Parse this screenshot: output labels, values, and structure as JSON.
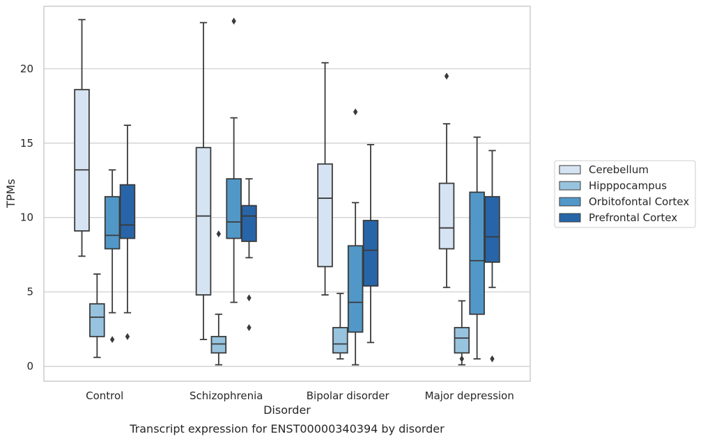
{
  "chart_data": {
    "type": "box",
    "xlabel": "Disorder",
    "ylabel": "TPMs",
    "caption": "Transcript expression for ENST00000340394 by disorder",
    "ylim": [
      -1,
      24.2
    ],
    "yticks": [
      0,
      5,
      10,
      15,
      20
    ],
    "grid": "horizontal",
    "legend_position": "right",
    "categories": [
      "Control",
      "Schizophrenia",
      "Bipolar disorder",
      "Major depression"
    ],
    "series": [
      {
        "name": "Cerebellum",
        "color": "#d5e3f2",
        "boxes": [
          {
            "whisker_low": 7.4,
            "q1": 9.1,
            "median": 13.2,
            "q3": 18.6,
            "whisker_high": 23.3,
            "outliers": []
          },
          {
            "whisker_low": 1.8,
            "q1": 4.8,
            "median": 10.1,
            "q3": 14.7,
            "whisker_high": 23.1,
            "outliers": []
          },
          {
            "whisker_low": 4.8,
            "q1": 6.7,
            "median": 11.3,
            "q3": 13.6,
            "whisker_high": 20.4,
            "outliers": []
          },
          {
            "whisker_low": 5.3,
            "q1": 7.9,
            "median": 9.3,
            "q3": 12.3,
            "whisker_high": 16.3,
            "outliers": [
              19.5
            ]
          }
        ]
      },
      {
        "name": "Hipppocampus",
        "color": "#97c3df",
        "boxes": [
          {
            "whisker_low": 0.6,
            "q1": 2.0,
            "median": 3.3,
            "q3": 4.2,
            "whisker_high": 6.2,
            "outliers": []
          },
          {
            "whisker_low": 0.1,
            "q1": 0.9,
            "median": 1.5,
            "q3": 2.0,
            "whisker_high": 3.5,
            "outliers": [
              8.9
            ]
          },
          {
            "whisker_low": 0.5,
            "q1": 0.9,
            "median": 1.5,
            "q3": 2.6,
            "whisker_high": 4.9,
            "outliers": []
          },
          {
            "whisker_low": 0.1,
            "q1": 0.9,
            "median": 1.9,
            "q3": 2.6,
            "whisker_high": 4.4,
            "outliers": [
              0.5
            ]
          }
        ]
      },
      {
        "name": "Orbitofontal Cortex",
        "color": "#5198c8",
        "boxes": [
          {
            "whisker_low": 3.6,
            "q1": 7.9,
            "median": 8.8,
            "q3": 11.4,
            "whisker_high": 13.2,
            "outliers": [
              1.8
            ]
          },
          {
            "whisker_low": 4.3,
            "q1": 8.6,
            "median": 9.7,
            "q3": 12.6,
            "whisker_high": 16.7,
            "outliers": [
              23.2
            ]
          },
          {
            "whisker_low": 0.1,
            "q1": 2.3,
            "median": 4.3,
            "q3": 8.1,
            "whisker_high": 11.0,
            "outliers": [
              17.1
            ]
          },
          {
            "whisker_low": 0.5,
            "q1": 3.5,
            "median": 7.1,
            "q3": 11.7,
            "whisker_high": 15.4,
            "outliers": []
          }
        ]
      },
      {
        "name": "Prefrontal Cortex",
        "color": "#2865a8",
        "boxes": [
          {
            "whisker_low": 3.6,
            "q1": 8.6,
            "median": 9.5,
            "q3": 12.2,
            "whisker_high": 16.2,
            "outliers": [
              2.0
            ]
          },
          {
            "whisker_low": 7.3,
            "q1": 8.4,
            "median": 10.1,
            "q3": 10.8,
            "whisker_high": 12.6,
            "outliers": [
              4.6,
              2.6
            ]
          },
          {
            "whisker_low": 1.6,
            "q1": 5.4,
            "median": 7.8,
            "q3": 9.8,
            "whisker_high": 14.9,
            "outliers": []
          },
          {
            "whisker_low": 5.3,
            "q1": 7.0,
            "median": 8.7,
            "q3": 11.4,
            "whisker_high": 14.5,
            "outliers": [
              0.5
            ]
          }
        ]
      }
    ]
  }
}
